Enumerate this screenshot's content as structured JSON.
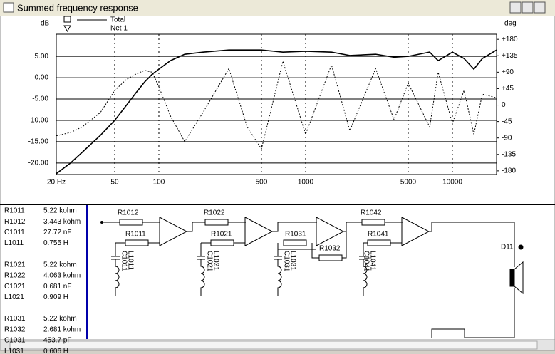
{
  "window": {
    "title": "Summed frequency response"
  },
  "chart_data": {
    "type": "line",
    "y_label": "dB",
    "y2_label": "deg",
    "log_x": true,
    "grid": true,
    "xlim": [
      20,
      20000
    ],
    "xticks": [
      {
        "value": 20,
        "label": "20 Hz"
      },
      50,
      100,
      500,
      1000,
      5000,
      10000
    ],
    "ylim": [
      -22.7,
      10.2
    ],
    "yticks": [
      {
        "value": 5,
        "label": "5.00"
      },
      {
        "value": 0,
        "label": "0.00"
      },
      {
        "value": -5,
        "label": "-5.00"
      },
      {
        "value": -10,
        "label": "-10.00"
      },
      {
        "value": -15,
        "label": "-15.00"
      },
      {
        "value": -20,
        "label": "-20.00"
      }
    ],
    "y2lim": [
      -190,
      194
    ],
    "y2ticks": [
      {
        "value": 180,
        "label": "+180"
      },
      {
        "value": 135,
        "label": "+135"
      },
      {
        "value": 90,
        "label": "+90"
      },
      {
        "value": 45,
        "label": "+45"
      },
      0,
      -45,
      -90,
      -135,
      -180
    ],
    "x": [
      20,
      25,
      30,
      40,
      50,
      60,
      70,
      80,
      90,
      100,
      120,
      150,
      200,
      300,
      400,
      500,
      700,
      1000,
      1500,
      2000,
      3000,
      4000,
      5000,
      7000,
      8000,
      10000,
      12000,
      14000,
      16000,
      20000
    ],
    "series": [
      {
        "name": "Total",
        "color": "#000000",
        "values": [
          -22.5,
          -20,
          -17.5,
          -13.5,
          -10,
          -6.5,
          -3.5,
          -1,
          0.8,
          2,
          4,
          5.5,
          6,
          6.5,
          6.5,
          6.5,
          6,
          6.2,
          6,
          5.2,
          5.5,
          4.8,
          5,
          6,
          4,
          6,
          4.5,
          2,
          4.5,
          6.5
        ]
      },
      {
        "name": "Net 1",
        "color": "#000000",
        "axis": "y2",
        "values": [
          -84,
          -75,
          -60,
          -20,
          40,
          70,
          85,
          95,
          90,
          50,
          -30,
          -100,
          -20,
          100,
          -60,
          -120,
          120,
          -80,
          110,
          -70,
          100,
          -40,
          60,
          -60,
          90,
          -50,
          40,
          -80,
          30,
          20
        ]
      }
    ]
  },
  "components": [
    [
      "R1011",
      "5.22 kohm"
    ],
    [
      "R1012",
      "3.443 kohm"
    ],
    [
      "C1011",
      "27.72 nF"
    ],
    [
      "L1011",
      "0.755 H"
    ],
    [
      "R1021",
      "5.22 kohm"
    ],
    [
      "R1022",
      "4.063 kohm"
    ],
    [
      "C1021",
      "0.681 nF"
    ],
    [
      "L1021",
      "0.909 H"
    ],
    [
      "R1031",
      "5.22 kohm"
    ],
    [
      "R1032",
      "2.681 kohm"
    ],
    [
      "C1031",
      "453.7 pF"
    ],
    [
      "L1031",
      "0.606 H"
    ]
  ],
  "schematic": {
    "labels": [
      "R1012",
      "R1011",
      "C1011",
      "L1011",
      "R1022",
      "R1021",
      "C1021",
      "L1021",
      "R1031",
      "R1032",
      "C1031",
      "L1031",
      "R1042",
      "R1041",
      "C1041",
      "L1041",
      "D11"
    ]
  }
}
